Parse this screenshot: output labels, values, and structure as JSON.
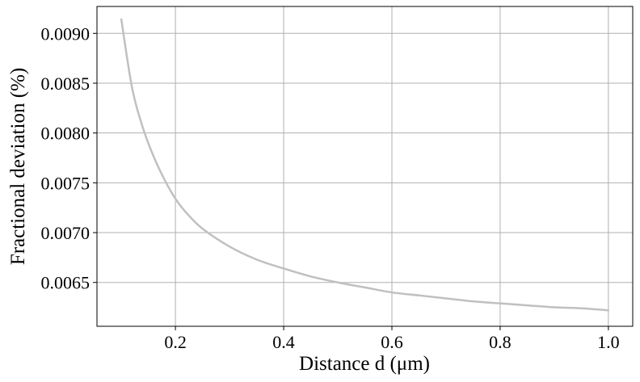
{
  "chart_data": {
    "type": "line",
    "title": "",
    "xlabel": "Distance d (μm)",
    "ylabel": "Fractional deviation (%)",
    "xlim": [
      0.055,
      1.045
    ],
    "ylim": [
      0.00606,
      0.00927
    ],
    "grid": true,
    "x_ticks": [
      0.2,
      0.4,
      0.6,
      0.8,
      1.0
    ],
    "x_tick_labels": [
      "0.2",
      "0.4",
      "0.6",
      "0.8",
      "1.0"
    ],
    "y_ticks": [
      0.0065,
      0.007,
      0.0075,
      0.008,
      0.0085,
      0.009
    ],
    "y_tick_labels": [
      "0.0065",
      "0.0070",
      "0.0075",
      "0.0080",
      "0.0085",
      "0.0090"
    ],
    "series": [
      {
        "color": "#c0c0c0",
        "x": [
          0.1,
          0.12,
          0.14,
          0.16,
          0.18,
          0.2,
          0.22,
          0.25,
          0.3,
          0.35,
          0.4,
          0.45,
          0.5,
          0.55,
          0.6,
          0.65,
          0.7,
          0.75,
          0.8,
          0.85,
          0.9,
          0.95,
          1.0
        ],
        "y": [
          0.00914,
          0.00845,
          0.00805,
          0.00776,
          0.00753,
          0.00734,
          0.0072,
          0.00704,
          0.00686,
          0.00673,
          0.00664,
          0.00656,
          0.0065,
          0.00645,
          0.0064,
          0.00637,
          0.00634,
          0.00631,
          0.00629,
          0.00627,
          0.00625,
          0.00624,
          0.00622
        ]
      }
    ]
  }
}
